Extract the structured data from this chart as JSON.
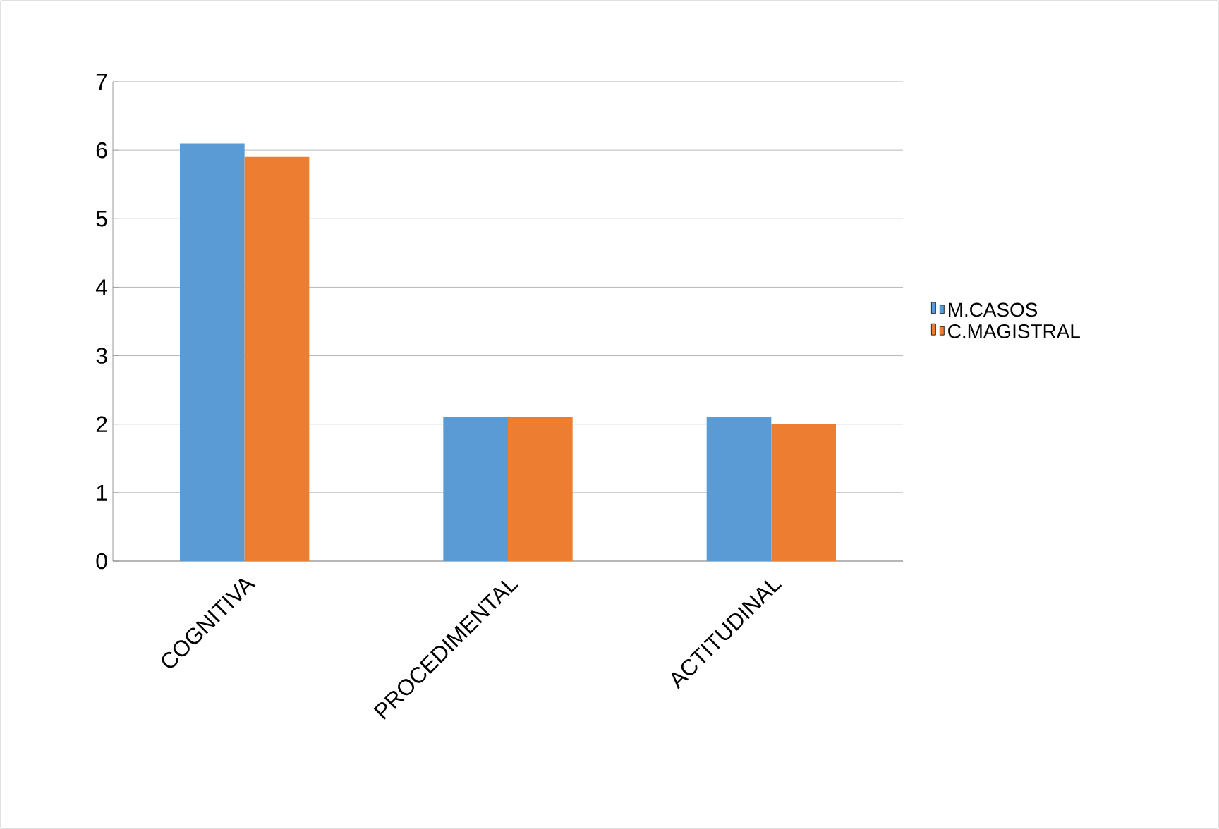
{
  "chart_data": {
    "type": "bar",
    "categories": [
      "COGNITIVA",
      "PROCEDIMENTAL",
      "ACTITUDINAL"
    ],
    "series": [
      {
        "name": "M.CASOS",
        "color": "#5b9bd5",
        "values": [
          6.1,
          2.1,
          2.1
        ]
      },
      {
        "name": "C.MAGISTRAL",
        "color": "#ed7d31",
        "values": [
          5.9,
          2.1,
          2.0
        ]
      }
    ],
    "ylim": [
      0,
      7
    ],
    "yticks": [
      0,
      1,
      2,
      3,
      4,
      5,
      6,
      7
    ],
    "grid": "y",
    "legend": "right"
  }
}
